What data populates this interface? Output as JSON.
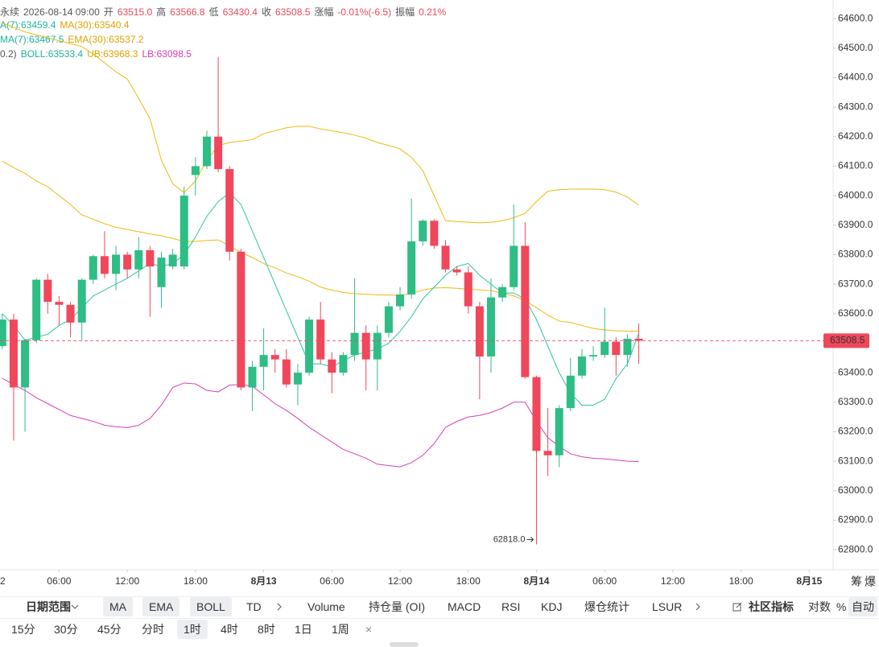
{
  "header": {
    "line1": [
      "永续",
      "2026-08-14 09:00",
      "开",
      "63515.0",
      "高",
      "63566.8",
      "低",
      "63430.4",
      "收",
      "63508.5",
      "涨幅",
      "-0.01%(-6.5)",
      "振幅",
      "0.21%"
    ],
    "line2": [
      "A(7):63459.4",
      "MA(30):63540.4"
    ],
    "line3": [
      "MA(7):63467.5",
      "EMA(30):63537.2"
    ],
    "line4": [
      "0.2)",
      "BOLL:63533.4",
      "UB:63968.3",
      "LB:63098.5"
    ]
  },
  "corner": [
    "筹",
    "爆"
  ],
  "toolbar": {
    "date_range": "日期范围",
    "main": [
      "MA",
      "EMA",
      "BOLL",
      "TD"
    ],
    "sub": [
      "Volume",
      "持仓量 (OI)",
      "MACD",
      "RSI",
      "KDJ",
      "爆仓统计",
      "LSUR"
    ],
    "community": "社区指标",
    "options": [
      "对数",
      "%",
      "自动"
    ]
  },
  "intervals": {
    "items": [
      "15分",
      "30分",
      "45分",
      "分时",
      "1时",
      "4时",
      "8时",
      "1日",
      "1周"
    ],
    "close": "×",
    "active": 4
  },
  "chart_data": {
    "type": "candlestick",
    "xlim": [
      -0.2,
      73.1
    ],
    "ylim": [
      62754,
      64663
    ],
    "yticks": [
      {
        "value": 64600,
        "label": "64600.0"
      },
      {
        "value": 64500,
        "label": "64500.0"
      },
      {
        "value": 64400,
        "label": "64400.0"
      },
      {
        "value": 64300,
        "label": "64300.0"
      },
      {
        "value": 64200,
        "label": "64200.0"
      },
      {
        "value": 64100,
        "label": "64100.0"
      },
      {
        "value": 64000,
        "label": "64000.0"
      },
      {
        "value": 63900,
        "label": "63900.0"
      },
      {
        "value": 63800,
        "label": "63800.0"
      },
      {
        "value": 63700,
        "label": "63700.0"
      },
      {
        "value": 63600,
        "label": "63600.0"
      },
      {
        "value": 63400,
        "label": "63400.0"
      },
      {
        "value": 63300,
        "label": "63300.0"
      },
      {
        "value": 63200,
        "label": "63200.0"
      },
      {
        "value": 63100,
        "label": "63100.0"
      },
      {
        "value": 63000,
        "label": "63000.0"
      },
      {
        "value": 62900,
        "label": "62900.0"
      },
      {
        "value": 62800,
        "label": "62800.0"
      }
    ],
    "xticks": [
      {
        "value": -1,
        "label": "2"
      },
      {
        "value": 5,
        "label": "06:00"
      },
      {
        "value": 11,
        "label": "12:00"
      },
      {
        "value": 17,
        "label": "18:00"
      },
      {
        "value": 23,
        "label": "8月13"
      },
      {
        "value": 29,
        "label": "06:00"
      },
      {
        "value": 35,
        "label": "12:00"
      },
      {
        "value": 41,
        "label": "18:00"
      },
      {
        "value": 47,
        "label": "8月14"
      },
      {
        "value": 53,
        "label": "06:00"
      },
      {
        "value": 59,
        "label": "12:00"
      },
      {
        "value": 65,
        "label": "18:00"
      },
      {
        "value": 71,
        "label": "8月15"
      }
    ],
    "up_color": "#2ebd85",
    "down_color": "#f0475b",
    "candles": [
      [
        63490,
        63600,
        63480,
        63580
      ],
      [
        63580,
        63600,
        63170,
        63350
      ],
      [
        63350,
        63515,
        63200,
        63510
      ],
      [
        63510,
        63720,
        63500,
        63715
      ],
      [
        63715,
        63735,
        63600,
        63640
      ],
      [
        63640,
        63660,
        63560,
        63630
      ],
      [
        63630,
        63640,
        63520,
        63570
      ],
      [
        63570,
        63720,
        63510,
        63715
      ],
      [
        63715,
        63800,
        63700,
        63795
      ],
      [
        63795,
        63880,
        63720,
        63735
      ],
      [
        63735,
        63830,
        63680,
        63800
      ],
      [
        63800,
        63810,
        63720,
        63750
      ],
      [
        63750,
        63860,
        63720,
        63815
      ],
      [
        63815,
        63830,
        63590,
        63760
      ],
      [
        63690,
        63810,
        63620,
        63790
      ],
      [
        63760,
        63820,
        63750,
        63800
      ],
      [
        63760,
        64030,
        63750,
        64000
      ],
      [
        64070,
        64130,
        64000,
        64100
      ],
      [
        64100,
        64220,
        64090,
        64200
      ],
      [
        64200,
        64470,
        64080,
        64090
      ],
      [
        64090,
        64100,
        63780,
        63810
      ],
      [
        63810,
        63820,
        63340,
        63350
      ],
      [
        63350,
        63440,
        63270,
        63420
      ],
      [
        63420,
        63550,
        63340,
        63460
      ],
      [
        63460,
        63480,
        63400,
        63445
      ],
      [
        63445,
        63480,
        63350,
        63360
      ],
      [
        63360,
        63430,
        63290,
        63400
      ],
      [
        63400,
        63590,
        63390,
        63580
      ],
      [
        63580,
        63640,
        63430,
        63445
      ],
      [
        63445,
        63470,
        63330,
        63400
      ],
      [
        63400,
        63470,
        63390,
        63460
      ],
      [
        63460,
        63720,
        63440,
        63535
      ],
      [
        63535,
        63560,
        63340,
        63445
      ],
      [
        63445,
        63560,
        63340,
        63535
      ],
      [
        63535,
        63640,
        63520,
        63625
      ],
      [
        63625,
        63690,
        63610,
        63665
      ],
      [
        63665,
        63990,
        63650,
        63845
      ],
      [
        63845,
        63920,
        63830,
        63915
      ],
      [
        63915,
        63920,
        63820,
        63830
      ],
      [
        63830,
        63850,
        63740,
        63750
      ],
      [
        63750,
        63760,
        63730,
        63740
      ],
      [
        63740,
        63760,
        63600,
        63625
      ],
      [
        63625,
        63640,
        63310,
        63455
      ],
      [
        63455,
        63720,
        63400,
        63655
      ],
      [
        63655,
        63700,
        63640,
        63690
      ],
      [
        63690,
        63970,
        63680,
        63830
      ],
      [
        63830,
        63910,
        63380,
        63385
      ],
      [
        63385,
        63390,
        62818,
        63135
      ],
      [
        63135,
        63280,
        63050,
        63120
      ],
      [
        63120,
        63290,
        63080,
        63280
      ],
      [
        63280,
        63450,
        63270,
        63390
      ],
      [
        63390,
        63480,
        63380,
        63455
      ],
      [
        63455,
        63490,
        63440,
        63460
      ],
      [
        63460,
        63620,
        63450,
        63505
      ],
      [
        63505,
        63520,
        63390,
        63460
      ],
      [
        63460,
        63530,
        63420,
        63515
      ],
      [
        63515.0,
        63566.8,
        63430.4,
        63508.5
      ]
    ],
    "series": [
      {
        "color": "#f0b90b",
        "values": [
          64585,
          64570,
          64555,
          64545,
          64535,
          64525,
          64515,
          64505,
          64480,
          64450,
          64420,
          64395,
          64330,
          64260,
          64120,
          64040,
          64010,
          64050,
          64120,
          64170,
          64180,
          64185,
          64190,
          64210,
          64220,
          64230,
          64235,
          64235,
          64226,
          64220,
          64213,
          64205,
          64195,
          64180,
          64170,
          64158,
          64130,
          64085,
          64000,
          63915,
          63912,
          63910,
          63908,
          63910,
          63915,
          63925,
          63940,
          63980,
          64015,
          64020,
          64022,
          64022,
          64022,
          64020,
          64012,
          63995,
          63968.3
        ]
      },
      {
        "color": "#d63fb5",
        "values": [
          63381,
          63360,
          63340,
          63315,
          63295,
          63275,
          63255,
          63245,
          63235,
          63222,
          63217,
          63214,
          63222,
          63245,
          63290,
          63350,
          63365,
          63362,
          63340,
          63335,
          63358,
          63360,
          63354,
          63325,
          63295,
          63272,
          63245,
          63215,
          63190,
          63165,
          63140,
          63125,
          63110,
          63090,
          63085,
          63081,
          63095,
          63120,
          63160,
          63215,
          63235,
          63250,
          63255,
          63265,
          63280,
          63300,
          63300,
          63235,
          63180,
          63150,
          63125,
          63115,
          63110,
          63108,
          63104,
          63100,
          63098.5
        ]
      },
      {
        "color": "#f0b90b",
        "values": [
          64117,
          64095,
          64075,
          64050,
          64030,
          64000,
          63970,
          63935,
          63920,
          63905,
          63893,
          63885,
          63878,
          63870,
          63864,
          63855,
          63845,
          63845,
          63848,
          63850,
          63830,
          63808,
          63790,
          63770,
          63755,
          63738,
          63725,
          63710,
          63690,
          63680,
          63672,
          63668,
          63666,
          63664,
          63663,
          63662,
          63668,
          63680,
          63687,
          63688,
          63686,
          63683,
          63681,
          63678,
          63670,
          63660,
          63645,
          63620,
          63595,
          63575,
          63570,
          63560,
          63550,
          63545,
          63542,
          63541,
          63540.4
        ]
      },
      {
        "color": "#2ec4a5",
        "values": [
          63600,
          63560,
          63510,
          63520,
          63530,
          63560,
          63580,
          63620,
          63660,
          63680,
          63700,
          63720,
          63745,
          63770,
          63760,
          63770,
          63800,
          63860,
          63930,
          63980,
          64010,
          63970,
          63880,
          63790,
          63700,
          63610,
          63520,
          63430,
          63430,
          63420,
          63440,
          63460,
          63470,
          63480,
          63500,
          63540,
          63590,
          63650,
          63690,
          63730,
          63760,
          63770,
          63730,
          63700,
          63670,
          63670,
          63650,
          63580,
          63490,
          63400,
          63330,
          63290,
          63290,
          63310,
          63380,
          63430,
          63533.4
        ]
      }
    ],
    "last": 63508.5,
    "annotation": {
      "index": 47,
      "value": 62818,
      "label": "62818.0"
    }
  }
}
